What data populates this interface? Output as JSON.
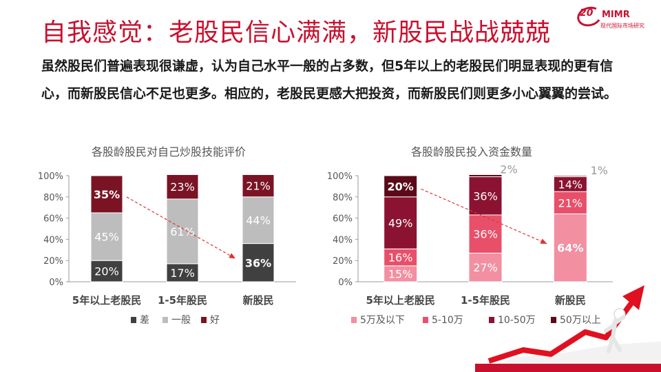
{
  "header": {
    "title": "自我感觉：老股民信心满满，新股民战战兢兢",
    "logo_num": "20",
    "logo_text": "MIMR",
    "logo_sub": "现代国际市场研究",
    "brand_color": "#c8102e"
  },
  "description": "虽然股民们普遍表现很谦虚，认为自己水平一般的占多数，但5年以上的老股民们明显表现的更有信心，而新股民信心不足也更多。相应的，老股民更感大把投资，而新股民们则更多小心翼翼的尝试。",
  "chart_data": [
    {
      "type": "bar",
      "stacked": true,
      "title": "各股龄股民对自己炒股技能评价",
      "categories": [
        "5年以上老股民",
        "1-5年股民",
        "新股民"
      ],
      "series": [
        {
          "name": "差",
          "values": [
            20,
            17,
            36
          ],
          "color": "#404040",
          "label_color": "#ffffff"
        },
        {
          "name": "一般",
          "values": [
            45,
            61,
            44
          ],
          "color": "#bdbdbd",
          "label_color": "#ffffff"
        },
        {
          "name": "好",
          "values": [
            35,
            23,
            21
          ],
          "color": "#7a1424",
          "label_color": "#ffffff"
        }
      ],
      "data_labels": [
        [
          "20%",
          "17%",
          "36%"
        ],
        [
          "45%",
          "61%",
          "44%"
        ],
        [
          "35%",
          "23%",
          "21%"
        ]
      ],
      "highlight_labels": [
        "35%",
        "36%"
      ],
      "ylim": [
        0,
        100
      ],
      "yticks": [
        "0%",
        "20%",
        "40%",
        "60%",
        "80%",
        "100%"
      ],
      "legend": "bottom",
      "annotation": "dashed red arrow from 35% to 36%"
    },
    {
      "type": "bar",
      "stacked": true,
      "title": "各股龄股民投入资金数量",
      "categories": [
        "5年以上老股民",
        "1-5年股民",
        "新股民"
      ],
      "series": [
        {
          "name": "5万及以下",
          "values": [
            15,
            27,
            64
          ],
          "color": "#f28fa0",
          "label_color": "#ffffff"
        },
        {
          "name": "5-10万",
          "values": [
            16,
            36,
            21
          ],
          "color": "#e8506a",
          "label_color": "#ffffff"
        },
        {
          "name": "10-50万",
          "values": [
            49,
            36,
            14
          ],
          "color": "#8b1230",
          "label_color": "#ffffff"
        },
        {
          "name": "50万以上",
          "values": [
            20,
            2,
            1
          ],
          "color": "#5a0a18",
          "label_color": "#ffffff"
        }
      ],
      "data_labels": [
        [
          "15%",
          "27%",
          "64%"
        ],
        [
          "16%",
          "36%",
          "21%"
        ],
        [
          "49%",
          "36%",
          "14%"
        ],
        [
          "20%",
          "2%",
          "1%"
        ]
      ],
      "highlight_labels": [
        "20%",
        "64%"
      ],
      "outside_labels": [
        [
          3,
          1
        ],
        [
          3,
          2
        ]
      ],
      "ylim": [
        0,
        100
      ],
      "yticks": [
        "0%",
        "20%",
        "40%",
        "60%",
        "80%",
        "100%"
      ],
      "legend": "bottom",
      "annotation": "dashed red arrow from 20% to 64%"
    }
  ]
}
